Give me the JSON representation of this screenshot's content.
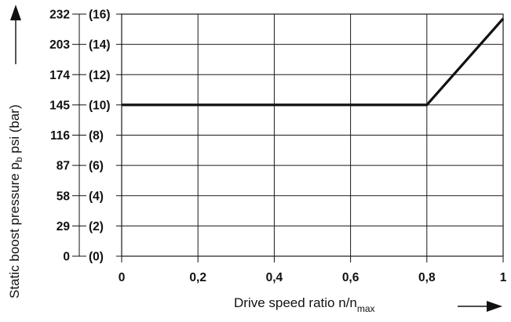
{
  "chart_data": {
    "type": "line",
    "xlabel_main": "Drive speed ratio n/n",
    "xlabel_sub": "max",
    "ylabel_main": "Static boost pressure p",
    "ylabel_sub": "b",
    "ylabel_tail": " psi (bar)",
    "xlim": [
      0,
      1
    ],
    "ylim": [
      0,
      16
    ],
    "y_unit": "bar",
    "grid": true,
    "x_ticks": [
      {
        "value": 0,
        "label": "0"
      },
      {
        "value": 0.2,
        "label": "0,2"
      },
      {
        "value": 0.4,
        "label": "0,4"
      },
      {
        "value": 0.6,
        "label": "0,6"
      },
      {
        "value": 0.8,
        "label": "0,8"
      },
      {
        "value": 1,
        "label": "1"
      }
    ],
    "y_ticks": [
      {
        "value": 0,
        "psi": "0",
        "bar": "(0)"
      },
      {
        "value": 2,
        "psi": "29",
        "bar": "(2)"
      },
      {
        "value": 4,
        "psi": "58",
        "bar": "(4)"
      },
      {
        "value": 6,
        "psi": "87",
        "bar": "(6)"
      },
      {
        "value": 8,
        "psi": "116",
        "bar": "(8)"
      },
      {
        "value": 10,
        "psi": "145",
        "bar": "(10)"
      },
      {
        "value": 12,
        "psi": "174",
        "bar": "(12)"
      },
      {
        "value": 14,
        "psi": "203",
        "bar": "(14)"
      },
      {
        "value": 16,
        "psi": "232",
        "bar": "(16)"
      }
    ],
    "series": [
      {
        "x": [
          0,
          0.8,
          1
        ],
        "y": [
          10,
          10,
          15.7
        ],
        "color": "#111111"
      }
    ]
  }
}
